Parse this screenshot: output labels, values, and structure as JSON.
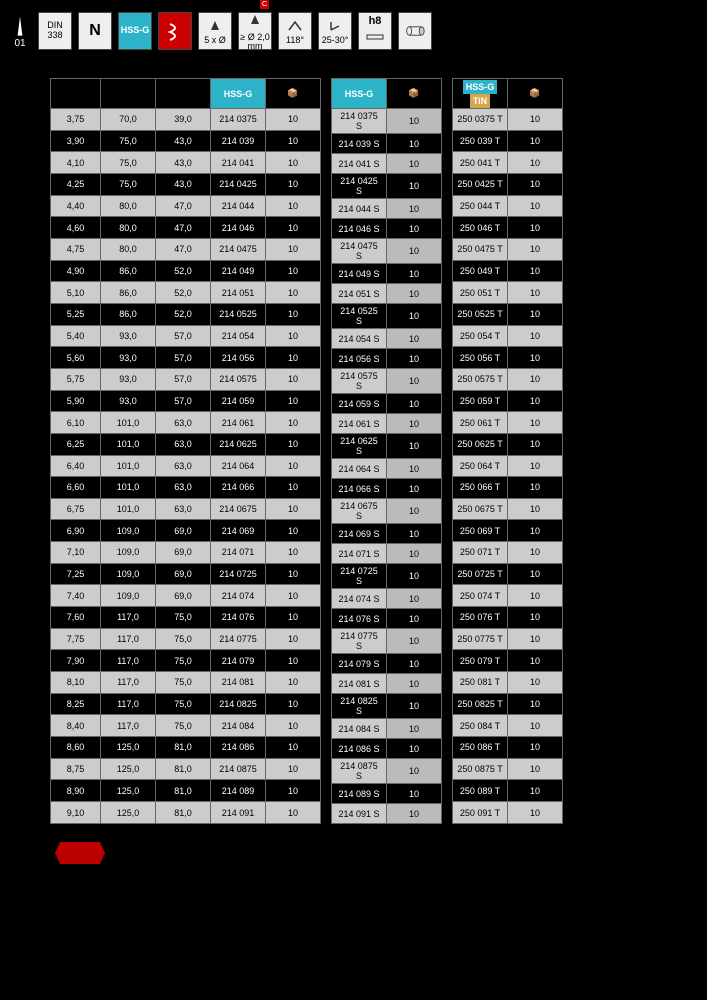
{
  "page_number": "01",
  "header": {
    "din_top": "DIN",
    "din_bot": "338",
    "n_label": "N",
    "hssg": "HSS-G",
    "spec1": "5 x Ø",
    "spec2": "≥ Ø 2,0 mm",
    "spec3": "118°",
    "spec4": "25-30°",
    "spec5": "h8"
  },
  "table_headers": {
    "hssg": "HSS-G",
    "tin": "TiN",
    "box": "📦"
  },
  "rows": [
    {
      "d": "3,75",
      "l": "70,0",
      "f": "39,0",
      "a": "214 0375",
      "q": "10",
      "b": "214 0375 S",
      "qb": "10",
      "c": "250 0375 T",
      "qc": "10"
    },
    {
      "d": "3,90",
      "l": "75,0",
      "f": "43,0",
      "a": "214 039",
      "q": "10",
      "b": "214 039 S",
      "qb": "10",
      "c": "250 039 T",
      "qc": "10"
    },
    {
      "d": "4,10",
      "l": "75,0",
      "f": "43,0",
      "a": "214 041",
      "q": "10",
      "b": "214 041 S",
      "qb": "10",
      "c": "250 041 T",
      "qc": "10"
    },
    {
      "d": "4,25",
      "l": "75,0",
      "f": "43,0",
      "a": "214 0425",
      "q": "10",
      "b": "214 0425 S",
      "qb": "10",
      "c": "250 0425 T",
      "qc": "10"
    },
    {
      "d": "4,40",
      "l": "80,0",
      "f": "47,0",
      "a": "214 044",
      "q": "10",
      "b": "214 044 S",
      "qb": "10",
      "c": "250 044 T",
      "qc": "10"
    },
    {
      "d": "4,60",
      "l": "80,0",
      "f": "47,0",
      "a": "214 046",
      "q": "10",
      "b": "214 046 S",
      "qb": "10",
      "c": "250 046 T",
      "qc": "10"
    },
    {
      "d": "4,75",
      "l": "80,0",
      "f": "47,0",
      "a": "214 0475",
      "q": "10",
      "b": "214 0475 S",
      "qb": "10",
      "c": "250 0475 T",
      "qc": "10"
    },
    {
      "d": "4,90",
      "l": "86,0",
      "f": "52,0",
      "a": "214 049",
      "q": "10",
      "b": "214 049 S",
      "qb": "10",
      "c": "250 049 T",
      "qc": "10"
    },
    {
      "d": "5,10",
      "l": "86,0",
      "f": "52,0",
      "a": "214 051",
      "q": "10",
      "b": "214 051 S",
      "qb": "10",
      "c": "250 051 T",
      "qc": "10"
    },
    {
      "d": "5,25",
      "l": "86,0",
      "f": "52,0",
      "a": "214 0525",
      "q": "10",
      "b": "214 0525 S",
      "qb": "10",
      "c": "250 0525 T",
      "qc": "10"
    },
    {
      "d": "5,40",
      "l": "93,0",
      "f": "57,0",
      "a": "214 054",
      "q": "10",
      "b": "214 054 S",
      "qb": "10",
      "c": "250 054 T",
      "qc": "10"
    },
    {
      "d": "5,60",
      "l": "93,0",
      "f": "57,0",
      "a": "214 056",
      "q": "10",
      "b": "214 056 S",
      "qb": "10",
      "c": "250 056 T",
      "qc": "10"
    },
    {
      "d": "5,75",
      "l": "93,0",
      "f": "57,0",
      "a": "214 0575",
      "q": "10",
      "b": "214 0575 S",
      "qb": "10",
      "c": "250 0575 T",
      "qc": "10"
    },
    {
      "d": "5,90",
      "l": "93,0",
      "f": "57,0",
      "a": "214 059",
      "q": "10",
      "b": "214 059 S",
      "qb": "10",
      "c": "250 059 T",
      "qc": "10"
    },
    {
      "d": "6,10",
      "l": "101,0",
      "f": "63,0",
      "a": "214 061",
      "q": "10",
      "b": "214 061 S",
      "qb": "10",
      "c": "250 061 T",
      "qc": "10"
    },
    {
      "d": "6,25",
      "l": "101,0",
      "f": "63,0",
      "a": "214 0625",
      "q": "10",
      "b": "214 0625 S",
      "qb": "10",
      "c": "250 0625 T",
      "qc": "10"
    },
    {
      "d": "6,40",
      "l": "101,0",
      "f": "63,0",
      "a": "214 064",
      "q": "10",
      "b": "214 064 S",
      "qb": "10",
      "c": "250 064 T",
      "qc": "10"
    },
    {
      "d": "6,60",
      "l": "101,0",
      "f": "63,0",
      "a": "214 066",
      "q": "10",
      "b": "214 066 S",
      "qb": "10",
      "c": "250 066 T",
      "qc": "10"
    },
    {
      "d": "6,75",
      "l": "101,0",
      "f": "63,0",
      "a": "214 0675",
      "q": "10",
      "b": "214 0675 S",
      "qb": "10",
      "c": "250 0675 T",
      "qc": "10"
    },
    {
      "d": "6,90",
      "l": "109,0",
      "f": "69,0",
      "a": "214 069",
      "q": "10",
      "b": "214 069 S",
      "qb": "10",
      "c": "250 069 T",
      "qc": "10"
    },
    {
      "d": "7,10",
      "l": "109,0",
      "f": "69,0",
      "a": "214 071",
      "q": "10",
      "b": "214 071 S",
      "qb": "10",
      "c": "250 071 T",
      "qc": "10"
    },
    {
      "d": "7,25",
      "l": "109,0",
      "f": "69,0",
      "a": "214 0725",
      "q": "10",
      "b": "214 0725 S",
      "qb": "10",
      "c": "250 0725 T",
      "qc": "10"
    },
    {
      "d": "7,40",
      "l": "109,0",
      "f": "69,0",
      "a": "214 074",
      "q": "10",
      "b": "214 074 S",
      "qb": "10",
      "c": "250 074 T",
      "qc": "10"
    },
    {
      "d": "7,60",
      "l": "117,0",
      "f": "75,0",
      "a": "214 076",
      "q": "10",
      "b": "214 076 S",
      "qb": "10",
      "c": "250 076 T",
      "qc": "10"
    },
    {
      "d": "7,75",
      "l": "117,0",
      "f": "75,0",
      "a": "214 0775",
      "q": "10",
      "b": "214 0775 S",
      "qb": "10",
      "c": "250 0775 T",
      "qc": "10"
    },
    {
      "d": "7,90",
      "l": "117,0",
      "f": "75,0",
      "a": "214 079",
      "q": "10",
      "b": "214 079 S",
      "qb": "10",
      "c": "250 079 T",
      "qc": "10"
    },
    {
      "d": "8,10",
      "l": "117,0",
      "f": "75,0",
      "a": "214 081",
      "q": "10",
      "b": "214 081 S",
      "qb": "10",
      "c": "250 081 T",
      "qc": "10"
    },
    {
      "d": "8,25",
      "l": "117,0",
      "f": "75,0",
      "a": "214 0825",
      "q": "10",
      "b": "214 0825 S",
      "qb": "10",
      "c": "250 0825 T",
      "qc": "10"
    },
    {
      "d": "8,40",
      "l": "117,0",
      "f": "75,0",
      "a": "214 084",
      "q": "10",
      "b": "214 084 S",
      "qb": "10",
      "c": "250 084 T",
      "qc": "10"
    },
    {
      "d": "8,60",
      "l": "125,0",
      "f": "81,0",
      "a": "214 086",
      "q": "10",
      "b": "214 086 S",
      "qb": "10",
      "c": "250 086 T",
      "qc": "10"
    },
    {
      "d": "8,75",
      "l": "125,0",
      "f": "81,0",
      "a": "214 0875",
      "q": "10",
      "b": "214 0875 S",
      "qb": "10",
      "c": "250 0875 T",
      "qc": "10"
    },
    {
      "d": "8,90",
      "l": "125,0",
      "f": "81,0",
      "a": "214 089",
      "q": "10",
      "b": "214 089 S",
      "qb": "10",
      "c": "250 089 T",
      "qc": "10"
    },
    {
      "d": "9,10",
      "l": "125,0",
      "f": "81,0",
      "a": "214 091",
      "q": "10",
      "b": "214 091 S",
      "qb": "10",
      "c": "250 091 T",
      "qc": "10"
    }
  ]
}
